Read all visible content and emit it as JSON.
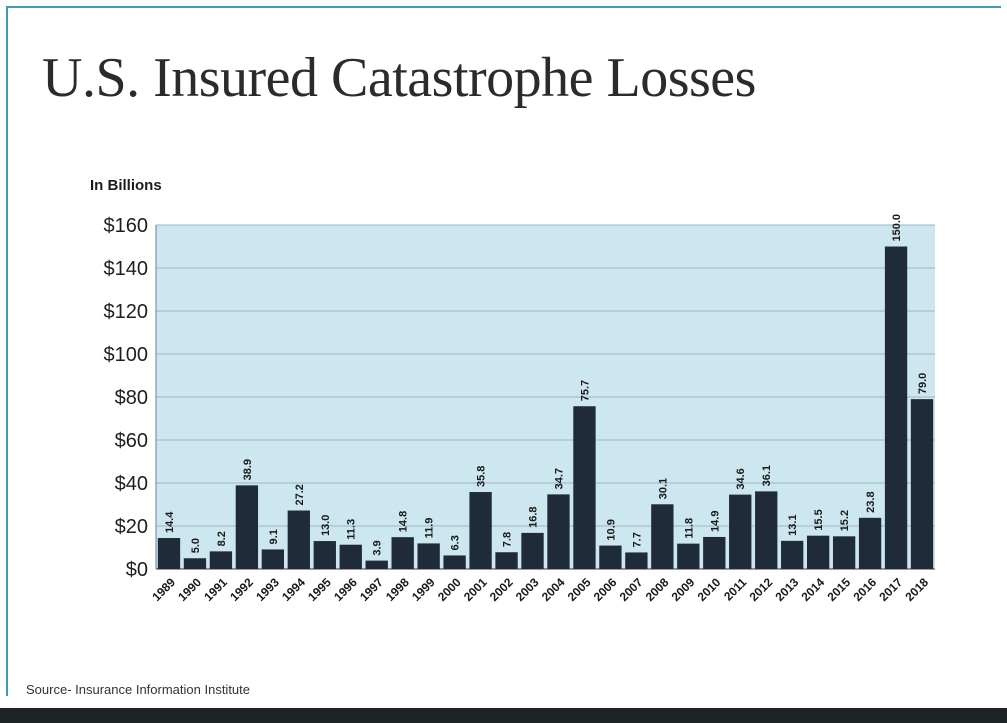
{
  "slide": {
    "title": "U.S. Insured Catastrophe Losses",
    "unit_label": "In Billions",
    "source": "Source- Insurance Information Institute"
  },
  "colors": {
    "bar": "#1f2b38",
    "plot_background": "#cde7f1",
    "gridline": "#9fb4bd",
    "frame_accent": "#3b9bb5"
  },
  "chart_data": {
    "type": "bar",
    "title": "",
    "xlabel": "",
    "ylabel": "In Billions",
    "ylim": [
      0,
      160
    ],
    "grid": true,
    "ytick_values": [
      0,
      20,
      40,
      60,
      80,
      100,
      120,
      140,
      160
    ],
    "ytick_labels": [
      "$0",
      "$20",
      "$40",
      "$60",
      "$80",
      "$100",
      "$120",
      "$140",
      "$160"
    ],
    "categories": [
      "1989",
      "1990",
      "1991",
      "1992",
      "1993",
      "1994",
      "1995",
      "1996",
      "1997",
      "1998",
      "1999",
      "2000",
      "2001",
      "2002",
      "2003",
      "2004",
      "2005",
      "2006",
      "2007",
      "2008",
      "2009",
      "2010",
      "2011",
      "2012",
      "2013",
      "2014",
      "2015",
      "2016",
      "2017",
      "2018"
    ],
    "values": [
      14.4,
      5.0,
      8.2,
      38.9,
      9.1,
      27.2,
      13.0,
      11.3,
      3.9,
      14.8,
      11.9,
      6.3,
      35.8,
      7.8,
      16.8,
      34.7,
      75.7,
      10.9,
      7.7,
      30.1,
      11.8,
      14.9,
      34.6,
      36.1,
      13.1,
      15.5,
      15.2,
      23.8,
      150.0,
      79.0
    ],
    "data_labels": [
      "14.4",
      "5.0",
      "8.2",
      "38.9",
      "9.1",
      "27.2",
      "13.0",
      "11.3",
      "3.9",
      "14.8",
      "11.9",
      "6.3",
      "35.8",
      "7.8",
      "16.8",
      "34.7",
      "75.7",
      "10.9",
      "7.7",
      "30.1",
      "11.8",
      "14.9",
      "34.6",
      "36.1",
      "13.1",
      "15.5",
      "15.2",
      "23.8",
      "150.0",
      "79.0"
    ]
  }
}
